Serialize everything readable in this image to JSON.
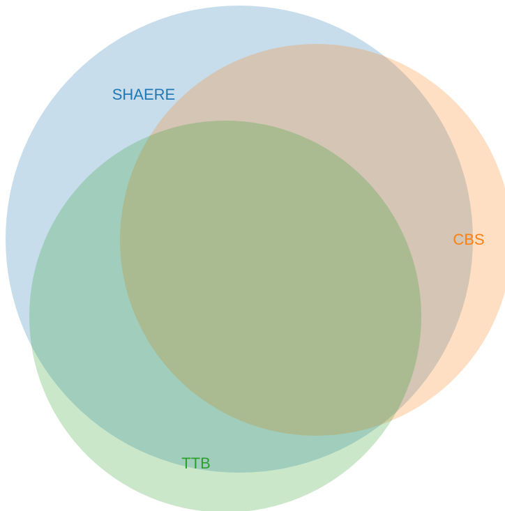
{
  "sets": [
    {
      "label": "SHAERE",
      "color": "#1f77b4"
    },
    {
      "label": "CBS",
      "color": "#ff7f0e"
    },
    {
      "label": "TTB",
      "color": "#2ca02c"
    }
  ]
}
